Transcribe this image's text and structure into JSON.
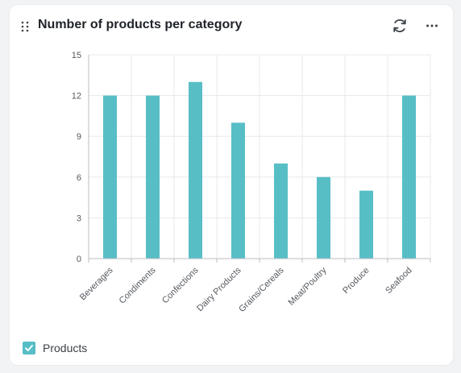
{
  "widget": {
    "title": "Number of products per category"
  },
  "icons": {
    "drag": "drag-handle-icon",
    "refresh": "refresh-icon",
    "more": "more-horizontal-icon",
    "legend_check": "checkmark-icon"
  },
  "colors": {
    "bar": "#57bec6",
    "grid": "#e6e8eb",
    "axis": "#b9bdc2",
    "tick_text": "#55595f"
  },
  "chart_data": {
    "type": "bar",
    "categories": [
      "Beverages",
      "Condiments",
      "Confections",
      "Dairy Products",
      "Grains/Cereals",
      "Meat/Poultry",
      "Produce",
      "Seafood"
    ],
    "series": [
      {
        "name": "Products",
        "values": [
          12,
          12,
          13,
          10,
          7,
          6,
          5,
          12
        ]
      }
    ],
    "yticks": [
      0,
      3,
      6,
      9,
      12,
      15
    ],
    "ylim": [
      0,
      15
    ],
    "grid": true,
    "legend": "bottom-left"
  },
  "legend": {
    "label": "Products",
    "checked": true
  }
}
